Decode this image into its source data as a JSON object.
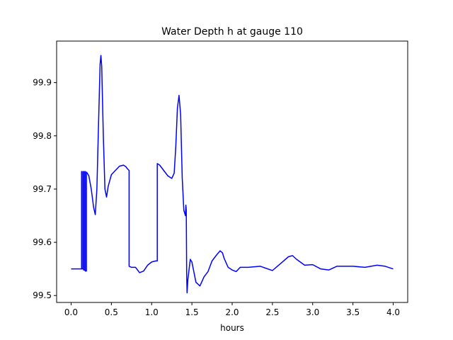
{
  "chart_data": {
    "type": "line",
    "title": "Water Depth h at gauge 110",
    "xlabel": "hours",
    "ylabel": "",
    "xlim": [
      -0.18,
      4.18
    ],
    "ylim": [
      99.487,
      99.978
    ],
    "xticks": [
      0.0,
      0.5,
      1.0,
      1.5,
      2.0,
      2.5,
      3.0,
      3.5,
      4.0
    ],
    "xtick_labels": [
      "0.0",
      "0.5",
      "1.0",
      "1.5",
      "2.0",
      "2.5",
      "3.0",
      "3.5",
      "4.0"
    ],
    "yticks": [
      99.5,
      99.6,
      99.7,
      99.8,
      99.9
    ],
    "ytick_labels": [
      "99.5",
      "99.6",
      "99.7",
      "99.8",
      "99.9"
    ],
    "grid": false,
    "series": [
      {
        "color": "#0000ff",
        "x": [
          0.0,
          0.13,
          0.13,
          0.135,
          0.135,
          0.15,
          0.15,
          0.155,
          0.155,
          0.17,
          0.17,
          0.175,
          0.175,
          0.19,
          0.19,
          0.2,
          0.22,
          0.25,
          0.28,
          0.3,
          0.32,
          0.34,
          0.36,
          0.37,
          0.38,
          0.4,
          0.42,
          0.44,
          0.46,
          0.5,
          0.55,
          0.6,
          0.65,
          0.68,
          0.7,
          0.72,
          0.72,
          0.75,
          0.8,
          0.85,
          0.9,
          0.95,
          1.0,
          1.05,
          1.07,
          1.07,
          1.1,
          1.15,
          1.2,
          1.25,
          1.28,
          1.3,
          1.32,
          1.34,
          1.36,
          1.38,
          1.4,
          1.42,
          1.425,
          1.43,
          1.435,
          1.44,
          1.45,
          1.48,
          1.5,
          1.55,
          1.6,
          1.65,
          1.7,
          1.75,
          1.8,
          1.85,
          1.88,
          1.9,
          1.95,
          2.0,
          2.05,
          2.1,
          2.2,
          2.35,
          2.5,
          2.6,
          2.7,
          2.75,
          2.8,
          2.9,
          3.0,
          3.1,
          3.2,
          3.3,
          3.5,
          3.65,
          3.8,
          3.9,
          4.0
        ],
        "y": [
          99.55,
          99.55,
          99.733,
          99.733,
          99.55,
          99.55,
          99.733,
          99.733,
          99.548,
          99.548,
          99.733,
          99.733,
          99.546,
          99.546,
          99.732,
          99.73,
          99.725,
          99.7,
          99.665,
          99.652,
          99.7,
          99.82,
          99.935,
          99.951,
          99.93,
          99.8,
          99.7,
          99.685,
          99.705,
          99.727,
          99.735,
          99.743,
          99.745,
          99.742,
          99.738,
          99.735,
          99.555,
          99.553,
          99.553,
          99.543,
          99.546,
          99.557,
          99.563,
          99.565,
          99.565,
          99.748,
          99.745,
          99.735,
          99.725,
          99.72,
          99.73,
          99.78,
          99.852,
          99.876,
          99.84,
          99.72,
          99.66,
          99.65,
          99.67,
          99.66,
          99.54,
          99.505,
          99.53,
          99.568,
          99.563,
          99.525,
          99.518,
          99.535,
          99.545,
          99.565,
          99.575,
          99.584,
          99.58,
          99.57,
          99.553,
          99.548,
          99.545,
          99.553,
          99.553,
          99.555,
          99.547,
          99.56,
          99.573,
          99.575,
          99.568,
          99.557,
          99.558,
          99.55,
          99.548,
          99.555,
          99.555,
          99.553,
          99.557,
          99.555,
          99.55
        ]
      }
    ]
  }
}
